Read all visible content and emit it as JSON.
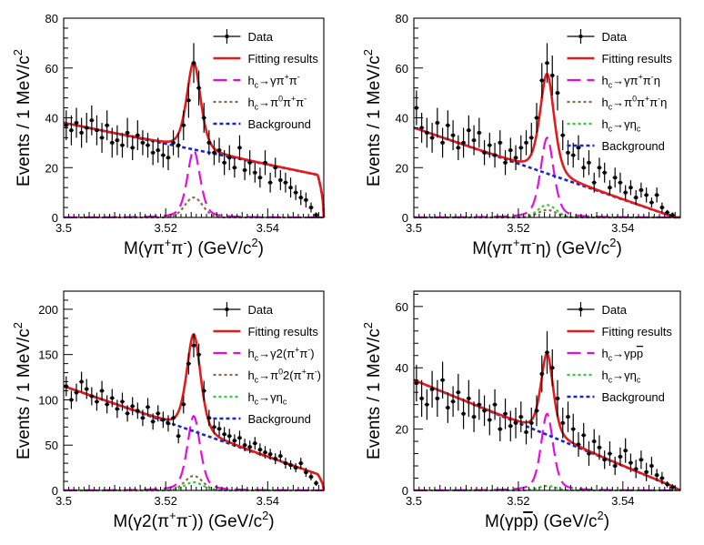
{
  "chart_data": [
    {
      "type": "line",
      "panel": "top-left",
      "xlabel": "M(γπ⁺π⁻) (GeV/c²)",
      "ylabel": "Events / 1 MeV/c²",
      "xlim": [
        3.5,
        3.551
      ],
      "ylim": [
        0,
        80
      ],
      "x_ticks": [
        "3.5",
        "3.52",
        "3.54"
      ],
      "y_ticks": [
        "0",
        "20",
        "40",
        "60",
        "80"
      ],
      "legend": {
        "placement": "top-right",
        "entries": [
          {
            "label": "Data",
            "style": "data"
          },
          {
            "label": "Fitting results",
            "style": "solid-red"
          },
          {
            "label": "h_c→γπ⁺π⁻",
            "style": "dash-magenta"
          },
          {
            "label": "h_c→π⁰π⁺π⁻",
            "style": "dot-brown"
          },
          {
            "label": "Background",
            "style": "dot-blue"
          }
        ]
      },
      "model": {
        "bkg": {
          "start": 38,
          "slope": -0.42,
          "cutoff": 3.551
        },
        "signal": {
          "mean": 3.5255,
          "amp": 27,
          "sigma": 0.0013
        },
        "components": [
          {
            "style": "dot-brown",
            "amp": 8
          }
        ]
      },
      "data_x_start": 3.5005,
      "data_values": [
        37,
        35,
        38,
        34,
        36,
        39,
        35,
        32,
        37,
        30,
        31,
        29,
        34,
        28,
        33,
        30,
        29,
        26,
        27,
        25,
        24,
        30,
        29,
        37,
        47,
        62,
        52,
        40,
        30,
        26,
        27,
        22,
        24,
        20,
        28,
        19,
        22,
        18,
        16,
        22,
        14,
        20,
        15,
        14,
        12,
        10,
        8,
        7,
        4,
        1
      ],
      "errors": [
        6,
        6,
        6,
        6,
        6,
        6,
        6,
        6,
        6,
        6,
        6,
        5,
        6,
        5,
        6,
        5,
        5,
        5,
        5,
        5,
        5,
        5,
        5,
        6,
        7,
        8,
        7,
        6,
        5,
        5,
        5,
        5,
        5,
        4,
        5,
        4,
        5,
        4,
        4,
        5,
        4,
        4,
        4,
        4,
        4,
        3,
        3,
        3,
        2,
        1
      ]
    },
    {
      "type": "line",
      "panel": "top-right",
      "xlabel": "M(γπ⁺π⁻η) (GeV/c²)",
      "ylabel": "Events / 1 MeV/c²",
      "xlim": [
        3.5,
        3.551
      ],
      "ylim": [
        0,
        80
      ],
      "x_ticks": [
        "3.5",
        "3.52",
        "3.54"
      ],
      "y_ticks": [
        "0",
        "20",
        "40",
        "60",
        "80"
      ],
      "legend": {
        "placement": "top-right",
        "entries": [
          {
            "label": "Data",
            "style": "data"
          },
          {
            "label": "Fitting results",
            "style": "solid-red"
          },
          {
            "label": "h_c→γπ⁺π⁻η",
            "style": "dash-magenta"
          },
          {
            "label": "h_c→π⁰π⁺π⁻η",
            "style": "dot-brown"
          },
          {
            "label": "h_c→γη_c",
            "style": "dot-green"
          },
          {
            "label": "Background",
            "style": "dot-blue"
          }
        ]
      },
      "model": {
        "bkg": {
          "start": 36,
          "slope": -0.72,
          "cutoff": 3.551
        },
        "signal": {
          "mean": 3.5255,
          "amp": 32,
          "sigma": 0.0013
        },
        "components": [
          {
            "style": "dot-green",
            "amp": 5
          },
          {
            "style": "dot-brown",
            "amp": 3
          }
        ]
      },
      "data_x_start": 3.5005,
      "data_values": [
        44,
        36,
        34,
        32,
        38,
        30,
        37,
        33,
        28,
        30,
        35,
        31,
        34,
        26,
        29,
        25,
        30,
        22,
        27,
        24,
        28,
        30,
        32,
        40,
        55,
        62,
        57,
        50,
        33,
        26,
        25,
        28,
        20,
        22,
        14,
        20,
        18,
        12,
        16,
        14,
        10,
        12,
        8,
        11,
        9,
        6,
        9,
        4,
        2,
        1
      ],
      "errors": [
        7,
        6,
        6,
        6,
        6,
        6,
        6,
        6,
        5,
        6,
        6,
        6,
        6,
        5,
        5,
        5,
        5,
        5,
        5,
        5,
        5,
        5,
        6,
        6,
        7,
        8,
        8,
        7,
        6,
        5,
        5,
        5,
        4,
        5,
        4,
        4,
        4,
        3,
        4,
        4,
        3,
        3,
        3,
        3,
        3,
        2,
        3,
        2,
        1,
        1
      ]
    },
    {
      "type": "line",
      "panel": "bottom-left",
      "xlabel": "M(γ2(π⁺π⁻)) (GeV/c²)",
      "ylabel": "Events / 1 MeV/c²",
      "xlim": [
        3.5,
        3.551
      ],
      "ylim": [
        0,
        220
      ],
      "x_ticks": [
        "3.5",
        "3.52",
        "3.54"
      ],
      "y_ticks": [
        "0",
        "50",
        "100",
        "150",
        "200"
      ],
      "legend": {
        "placement": "top-right",
        "entries": [
          {
            "label": "Data",
            "style": "data"
          },
          {
            "label": "Fitting results",
            "style": "solid-red"
          },
          {
            "label": "h_c→γ2(π⁺π⁻)",
            "style": "dash-magenta"
          },
          {
            "label": "h_c→π⁰2(π⁺π⁻)",
            "style": "dot-brown"
          },
          {
            "label": "h_c→γη_c",
            "style": "dot-green"
          },
          {
            "label": "Background",
            "style": "dot-blue"
          }
        ]
      },
      "model": {
        "bkg": {
          "start": 115,
          "slope": -1.95,
          "cutoff": 3.551
        },
        "signal": {
          "mean": 3.5255,
          "amp": 82,
          "sigma": 0.0013
        },
        "components": [
          {
            "style": "dot-brown",
            "amp": 16
          },
          {
            "style": "dot-green",
            "amp": 9
          }
        ]
      },
      "data_x_start": 3.5005,
      "data_values": [
        115,
        100,
        108,
        120,
        112,
        104,
        98,
        110,
        95,
        102,
        90,
        98,
        85,
        93,
        88,
        80,
        92,
        76,
        85,
        78,
        74,
        80,
        60,
        95,
        140,
        160,
        150,
        110,
        80,
        70,
        68,
        62,
        60,
        55,
        58,
        50,
        48,
        52,
        45,
        42,
        40,
        35,
        38,
        30,
        28,
        25,
        30,
        20,
        15,
        8
      ],
      "errors": [
        11,
        10,
        10,
        11,
        11,
        10,
        10,
        11,
        10,
        10,
        10,
        10,
        9,
        10,
        9,
        9,
        10,
        9,
        9,
        9,
        9,
        9,
        8,
        10,
        12,
        13,
        12,
        11,
        9,
        8,
        8,
        8,
        8,
        7,
        8,
        7,
        7,
        7,
        7,
        7,
        6,
        6,
        6,
        6,
        5,
        5,
        6,
        5,
        4,
        3
      ]
    },
    {
      "type": "line",
      "panel": "bottom-right",
      "xlabel": "M(γpp̄) (GeV/c²)",
      "ylabel": "Events / 1 MeV/c²",
      "xlim": [
        3.5,
        3.551
      ],
      "ylim": [
        0,
        65
      ],
      "x_ticks": [
        "3.5",
        "3.52",
        "3.54"
      ],
      "y_ticks": [
        "0",
        "20",
        "40",
        "60"
      ],
      "legend": {
        "placement": "top-right",
        "entries": [
          {
            "label": "Data",
            "style": "data"
          },
          {
            "label": "Fitting results",
            "style": "solid-red"
          },
          {
            "label": "h_c→γpp̄",
            "style": "dash-magenta"
          },
          {
            "label": "h_c→γη_c",
            "style": "dot-green"
          },
          {
            "label": "Background",
            "style": "dot-blue"
          }
        ]
      },
      "model": {
        "bkg": {
          "start": 36,
          "slope": -0.7,
          "cutoff": 3.551
        },
        "signal": {
          "mean": 3.5255,
          "amp": 25,
          "sigma": 0.0012
        },
        "components": [
          {
            "style": "dot-green",
            "amp": 1.5
          }
        ]
      },
      "data_x_start": 3.5005,
      "data_values": [
        35,
        30,
        28,
        33,
        30,
        36,
        27,
        29,
        32,
        25,
        30,
        24,
        28,
        26,
        23,
        28,
        20,
        25,
        21,
        22,
        24,
        19,
        22,
        26,
        38,
        45,
        40,
        30,
        22,
        24,
        20,
        15,
        18,
        12,
        16,
        14,
        10,
        12,
        8,
        11,
        13,
        9,
        7,
        10,
        6,
        8,
        5,
        4,
        2,
        1
      ],
      "errors": [
        6,
        6,
        5,
        6,
        6,
        6,
        5,
        5,
        6,
        5,
        6,
        5,
        5,
        5,
        5,
        5,
        4,
        5,
        5,
        5,
        5,
        4,
        5,
        5,
        6,
        7,
        6,
        6,
        5,
        5,
        5,
        4,
        4,
        4,
        4,
        4,
        3,
        4,
        3,
        3,
        4,
        3,
        3,
        3,
        3,
        3,
        2,
        2,
        1,
        1
      ]
    }
  ]
}
